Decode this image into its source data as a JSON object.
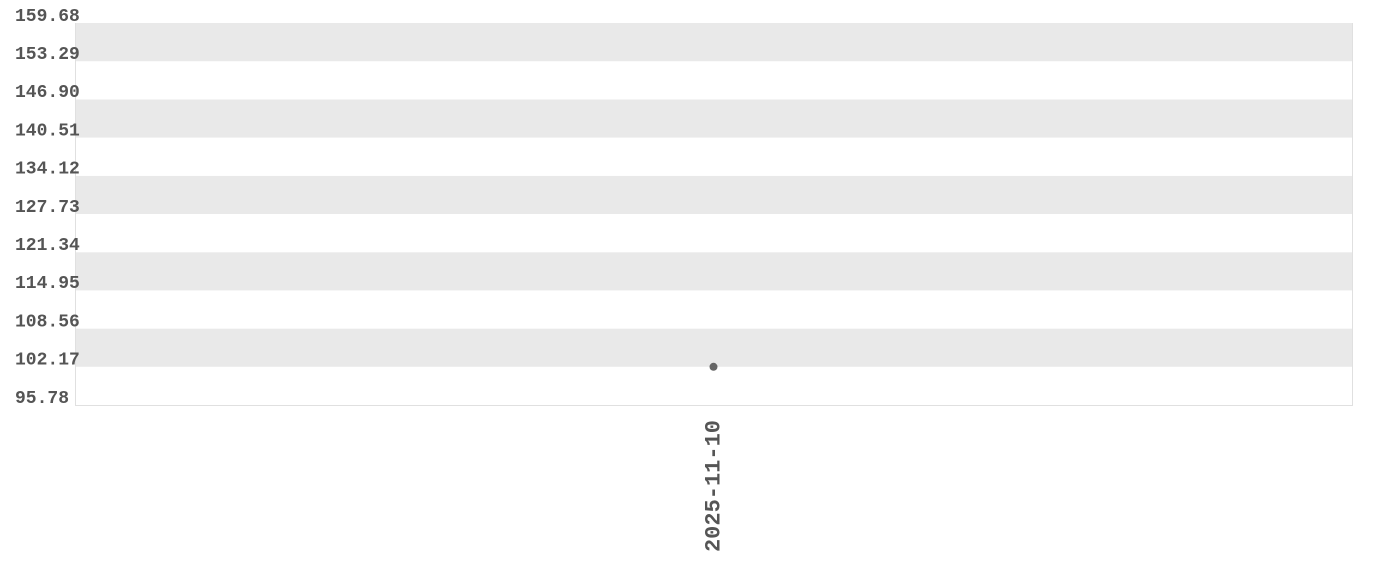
{
  "chart_data": {
    "type": "line",
    "categories": [
      "2025-11-10"
    ],
    "series": [
      {
        "color": "#666666",
        "values": [
          102.17
        ]
      }
    ],
    "ylim": [
      95.78,
      159.68
    ],
    "yticks": [
      95.78,
      102.17,
      108.56,
      114.95,
      121.34,
      127.73,
      134.12,
      140.51,
      {
        "value": 146.9,
        "label": "146.90"
      },
      153.29,
      159.68
    ],
    "grid": true
  }
}
